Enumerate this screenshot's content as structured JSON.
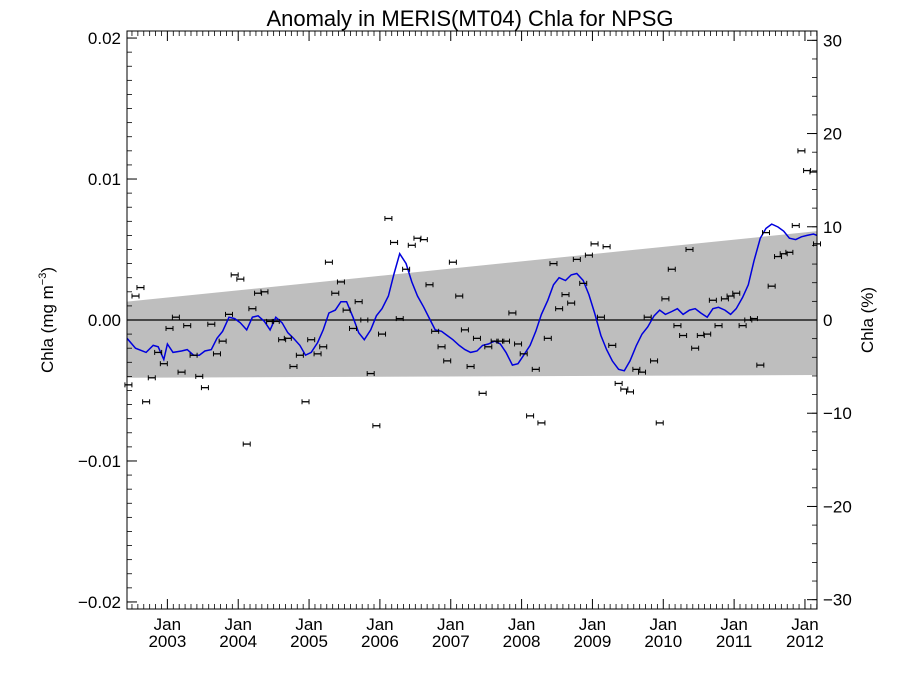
{
  "chart_data": {
    "type": "line",
    "title": "Anomaly in MERIS(MT04) Chla for NPSG",
    "ylabel_left": "Chla (mg m",
    "ylabel_left_sup": "−3",
    "ylabel_left_close": ")",
    "ylabel_right": "Chla (%)",
    "xlim": [
      2002.43,
      2012.17
    ],
    "ylim_left": [
      -0.0205,
      0.0205
    ],
    "ylim_right": [
      -31,
      31
    ],
    "yticks_left": [
      {
        "value": -0.02,
        "label": "−0.02"
      },
      {
        "value": -0.01,
        "label": "−0.01"
      },
      {
        "value": 0.0,
        "label": "0.00"
      },
      {
        "value": 0.01,
        "label": "0.01"
      },
      {
        "value": 0.02,
        "label": "0.02"
      }
    ],
    "yticks_right": [
      {
        "value": -30,
        "label": "−30"
      },
      {
        "value": -20,
        "label": "−20"
      },
      {
        "value": -10,
        "label": "−10"
      },
      {
        "value": 0,
        "label": "0"
      },
      {
        "value": 10,
        "label": "10"
      },
      {
        "value": 20,
        "label": "20"
      },
      {
        "value": 30,
        "label": "30"
      }
    ],
    "xticks": [
      {
        "value": 2003.0,
        "month": "Jan",
        "year": "2003"
      },
      {
        "value": 2004.0,
        "month": "Jan",
        "year": "2004"
      },
      {
        "value": 2005.0,
        "month": "Jan",
        "year": "2005"
      },
      {
        "value": 2006.0,
        "month": "Jan",
        "year": "2006"
      },
      {
        "value": 2007.0,
        "month": "Jan",
        "year": "2007"
      },
      {
        "value": 2008.0,
        "month": "Jan",
        "year": "2008"
      },
      {
        "value": 2009.0,
        "month": "Jan",
        "year": "2009"
      },
      {
        "value": 2010.0,
        "month": "Jan",
        "year": "2010"
      },
      {
        "value": 2011.0,
        "month": "Jan",
        "year": "2011"
      },
      {
        "value": 2012.0,
        "month": "Jan",
        "year": "2012"
      }
    ],
    "band": {
      "x": [
        2002.43,
        2012.17
      ],
      "upper": [
        0.0013,
        0.0063
      ],
      "lower": [
        -0.0041,
        -0.0039
      ],
      "color": "#bebebe"
    },
    "zero_line": true,
    "series": [
      {
        "style": "points_with_errorbars",
        "color": "#000000",
        "x": [
          2002.45,
          2002.55,
          2002.62,
          2002.7,
          2002.78,
          2002.87,
          2002.95,
          2003.03,
          2003.12,
          2003.2,
          2003.28,
          2003.37,
          2003.45,
          2003.53,
          2003.62,
          2003.7,
          2003.78,
          2003.87,
          2003.95,
          2004.03,
          2004.12,
          2004.2,
          2004.28,
          2004.37,
          2004.45,
          2004.53,
          2004.62,
          2004.7,
          2004.78,
          2004.87,
          2004.95,
          2005.03,
          2005.12,
          2005.2,
          2005.28,
          2005.37,
          2005.45,
          2005.53,
          2005.62,
          2005.7,
          2005.78,
          2005.87,
          2005.95,
          2006.03,
          2006.12,
          2006.2,
          2006.28,
          2006.37,
          2006.45,
          2006.53,
          2006.62,
          2006.7,
          2006.78,
          2006.87,
          2006.95,
          2007.03,
          2007.12,
          2007.2,
          2007.28,
          2007.37,
          2007.45,
          2007.53,
          2007.62,
          2007.7,
          2007.78,
          2007.87,
          2007.95,
          2008.03,
          2008.12,
          2008.2,
          2008.28,
          2008.37,
          2008.45,
          2008.53,
          2008.62,
          2008.7,
          2008.78,
          2008.87,
          2008.95,
          2009.03,
          2009.12,
          2009.2,
          2009.28,
          2009.37,
          2009.45,
          2009.53,
          2009.62,
          2009.7,
          2009.78,
          2009.87,
          2009.95,
          2010.03,
          2010.12,
          2010.2,
          2010.28,
          2010.37,
          2010.45,
          2010.53,
          2010.62,
          2010.7,
          2010.78,
          2010.87,
          2010.95,
          2011.03,
          2011.12,
          2011.2,
          2011.28,
          2011.37,
          2011.45,
          2011.53,
          2011.62,
          2011.7,
          2011.78,
          2011.87,
          2011.95,
          2012.03,
          2012.12,
          2012.17
        ],
        "y": [
          -0.0046,
          0.0017,
          0.0023,
          -0.0058,
          -0.0041,
          -0.0023,
          -0.0031,
          -0.0006,
          0.0002,
          -0.0037,
          -0.0004,
          -0.0025,
          -0.004,
          -0.0048,
          -0.0003,
          -0.0024,
          -0.0015,
          0.0004,
          0.0032,
          0.0029,
          -0.0088,
          0.0008,
          0.0019,
          0.002,
          -0.0001,
          -0.0001,
          -0.0014,
          -0.0013,
          -0.0033,
          -0.0025,
          -0.0058,
          -0.0014,
          -0.0024,
          -0.0019,
          0.0041,
          0.0019,
          0.0027,
          0.0007,
          -0.0006,
          0.0013,
          0.0,
          -0.0038,
          -0.0075,
          -0.001,
          0.0072,
          0.0055,
          0.0001,
          0.0036,
          0.0053,
          0.0058,
          0.0057,
          0.0025,
          -0.0008,
          -0.0019,
          -0.0029,
          0.0041,
          0.0017,
          -0.0007,
          -0.0033,
          -0.0013,
          -0.0052,
          -0.0019,
          -0.0015,
          -0.0015,
          -0.0015,
          0.0005,
          -0.0017,
          -0.0024,
          -0.0068,
          -0.0035,
          -0.0073,
          -0.0013,
          0.004,
          0.0008,
          0.0018,
          0.0012,
          0.0043,
          0.0026,
          0.0046,
          0.0054,
          0.0002,
          0.0052,
          -0.0018,
          -0.0045,
          -0.0049,
          -0.0051,
          -0.0035,
          -0.0037,
          0.0002,
          -0.0029,
          -0.0073,
          0.0015,
          0.0036,
          -0.0004,
          -0.0011,
          0.005,
          -0.002,
          -0.0011,
          -0.001,
          0.0014,
          -0.0004,
          0.0015,
          0.0017,
          0.0019,
          -0.0004,
          0.0,
          0.0001,
          -0.0032,
          0.0062,
          0.0024,
          0.0045,
          0.0047,
          0.0048,
          0.0067,
          0.012,
          0.0106,
          0.0105,
          0.0054
        ]
      },
      {
        "style": "line",
        "color": "#0000dd",
        "x": [
          2002.43,
          2002.55,
          2002.7,
          2002.8,
          2002.87,
          2002.95,
          2003.0,
          2003.08,
          2003.2,
          2003.28,
          2003.37,
          2003.45,
          2003.53,
          2003.62,
          2003.7,
          2003.78,
          2003.87,
          2003.95,
          2004.03,
          2004.12,
          2004.2,
          2004.28,
          2004.37,
          2004.45,
          2004.53,
          2004.62,
          2004.7,
          2004.78,
          2004.87,
          2004.95,
          2005.03,
          2005.12,
          2005.2,
          2005.28,
          2005.37,
          2005.45,
          2005.53,
          2005.62,
          2005.7,
          2005.78,
          2005.87,
          2005.95,
          2006.03,
          2006.12,
          2006.2,
          2006.28,
          2006.37,
          2006.45,
          2006.53,
          2006.62,
          2006.7,
          2006.78,
          2006.87,
          2006.95,
          2007.03,
          2007.12,
          2007.2,
          2007.28,
          2007.37,
          2007.45,
          2007.53,
          2007.62,
          2007.7,
          2007.78,
          2007.87,
          2007.95,
          2008.03,
          2008.12,
          2008.2,
          2008.28,
          2008.37,
          2008.45,
          2008.53,
          2008.62,
          2008.7,
          2008.78,
          2008.87,
          2008.95,
          2009.03,
          2009.12,
          2009.2,
          2009.28,
          2009.37,
          2009.45,
          2009.53,
          2009.62,
          2009.7,
          2009.78,
          2009.87,
          2009.95,
          2010.03,
          2010.12,
          2010.2,
          2010.28,
          2010.37,
          2010.45,
          2010.53,
          2010.62,
          2010.7,
          2010.78,
          2010.87,
          2010.95,
          2011.03,
          2011.12,
          2011.2,
          2011.28,
          2011.37,
          2011.45,
          2011.53,
          2011.62,
          2011.7,
          2011.78,
          2011.87,
          2011.95,
          2012.03,
          2012.12,
          2012.17
        ],
        "y": [
          -0.0013,
          -0.002,
          -0.0023,
          -0.0018,
          -0.0019,
          -0.0028,
          -0.0017,
          -0.0023,
          -0.0022,
          -0.0021,
          -0.0025,
          -0.0025,
          -0.0022,
          -0.0021,
          -0.0013,
          -0.0008,
          0.0002,
          0.0001,
          -0.0002,
          -0.0007,
          0.0002,
          0.0003,
          -0.0001,
          -0.0007,
          0.0002,
          -0.0002,
          -0.0009,
          -0.0013,
          -0.0018,
          -0.0025,
          -0.0023,
          -0.0016,
          -0.0007,
          0.0005,
          0.0007,
          0.0013,
          0.0013,
          0.0002,
          -0.0009,
          -0.0014,
          -0.0007,
          0.0003,
          0.0008,
          0.0017,
          0.0033,
          0.0047,
          0.004,
          0.0027,
          0.0017,
          0.0009,
          0.0001,
          -0.0007,
          -0.0008,
          -0.0011,
          -0.0014,
          -0.0018,
          -0.0021,
          -0.0023,
          -0.0022,
          -0.0018,
          -0.0017,
          -0.0015,
          -0.0017,
          -0.0023,
          -0.0032,
          -0.0031,
          -0.0025,
          -0.0018,
          -0.0008,
          0.0004,
          0.0014,
          0.0025,
          0.003,
          0.0028,
          0.0032,
          0.0033,
          0.0028,
          0.0018,
          0.0005,
          -0.0011,
          -0.0021,
          -0.0029,
          -0.0035,
          -0.0036,
          -0.0029,
          -0.0018,
          -0.001,
          -0.0005,
          0.0003,
          0.0007,
          0.0004,
          0.0006,
          0.0008,
          0.0004,
          0.0007,
          0.0008,
          0.0005,
          0.0002,
          0.0008,
          0.0009,
          0.0007,
          0.0004,
          0.0008,
          0.0016,
          0.0025,
          0.0042,
          0.0058,
          0.0065,
          0.0068,
          0.0066,
          0.0063,
          0.0058,
          0.0057,
          0.0059,
          0.006,
          0.0061,
          0.006
        ]
      }
    ]
  }
}
